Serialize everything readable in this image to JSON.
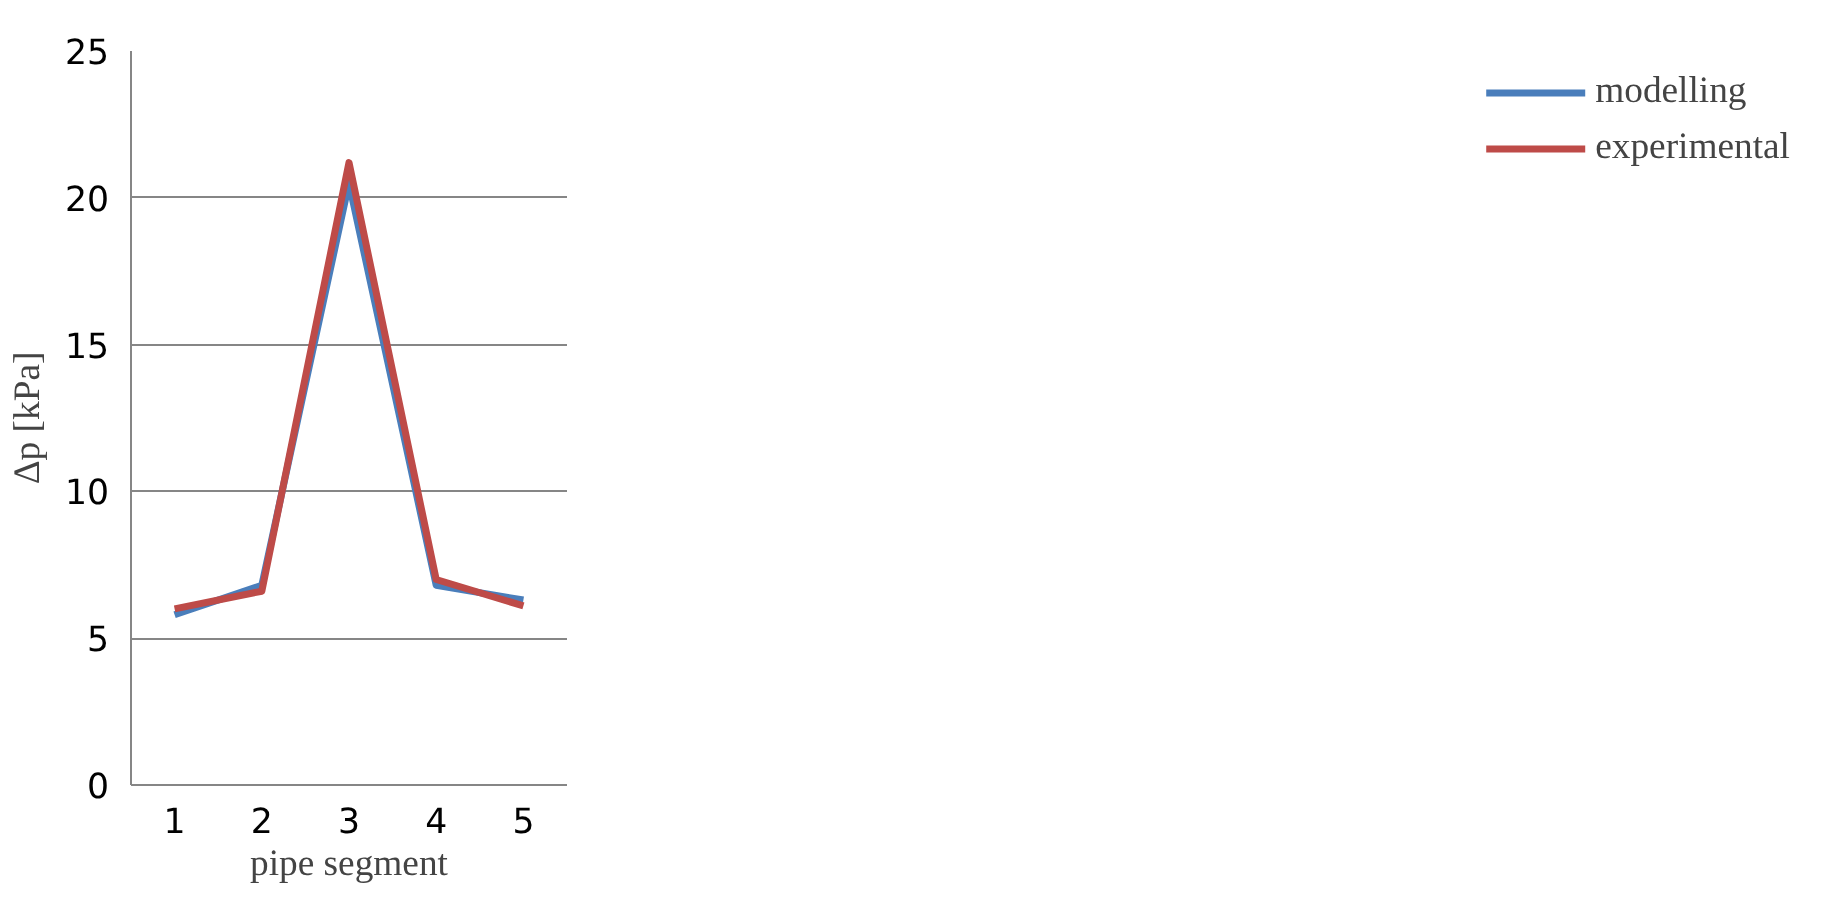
{
  "chart_data": {
    "type": "line",
    "xlabel": "pipe segment",
    "ylabel": "Δp [kPa]",
    "categories": [
      "1",
      "2",
      "3",
      "4",
      "5"
    ],
    "series": [
      {
        "name": "modelling",
        "color": "#4a7ebb",
        "values": [
          5.8,
          6.8,
          20.5,
          6.8,
          6.3
        ]
      },
      {
        "name": "experimental",
        "color": "#be4b48",
        "values": [
          6.0,
          6.6,
          21.2,
          7.0,
          6.1
        ]
      }
    ],
    "ylim": [
      0,
      25
    ],
    "yticks": [
      0,
      5,
      10,
      15,
      20,
      25
    ],
    "grid": "y",
    "legend": "right",
    "marker": "none",
    "line_style": "solid"
  }
}
